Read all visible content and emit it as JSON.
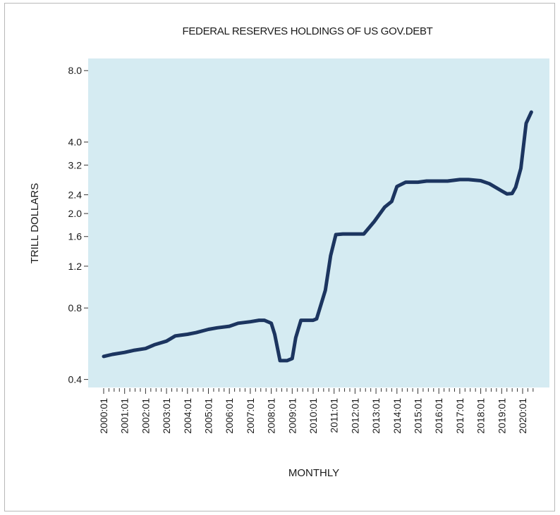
{
  "chart_data": {
    "type": "line",
    "title": "FEDERAL RESERVES HOLDINGS OF US GOV.DEBT",
    "xlabel": "MONTHLY",
    "ylabel": "TRILL DOLLARS",
    "yscale": "log",
    "ylim": [
      0.37,
      9.0
    ],
    "grid": false,
    "legend": "none",
    "plot_bg": "#d5ebf2",
    "line_color": "#1c3560",
    "yticks": [
      {
        "value": 0.4,
        "label": "0.4"
      },
      {
        "value": 0.8,
        "label": "0.8"
      },
      {
        "value": 1.2,
        "label": "1.2"
      },
      {
        "value": 1.6,
        "label": "1.6"
      },
      {
        "value": 2.0,
        "label": "2.0"
      },
      {
        "value": 2.4,
        "label": "2.4"
      },
      {
        "value": 3.2,
        "label": "3.2"
      },
      {
        "value": 4.0,
        "label": "4.0"
      },
      {
        "value": 8.0,
        "label": "8.0"
      }
    ],
    "xticks": [
      "2000:01",
      "2001:01",
      "2002:01",
      "2003:01",
      "2004:01",
      "2005:01",
      "2006:01",
      "2007:01",
      "2008:01",
      "2009:01",
      "2010:01",
      "2011:01",
      "2012:01",
      "2013:01",
      "2014:01",
      "2015:01",
      "2016:01",
      "2017:01",
      "2018:01",
      "2019:01",
      "2020:01"
    ],
    "series": [
      {
        "x": [
          "2000:01",
          "2000:06",
          "2001:01",
          "2001:06",
          "2002:01",
          "2002:06",
          "2003:01",
          "2003:06",
          "2004:01",
          "2004:06",
          "2005:01",
          "2005:06",
          "2006:01",
          "2006:06",
          "2007:01",
          "2007:06",
          "2007:09",
          "2008:01",
          "2008:03",
          "2008:06",
          "2008:10",
          "2009:01",
          "2009:03",
          "2009:06",
          "2010:01",
          "2010:03",
          "2010:08",
          "2010:11",
          "2011:02",
          "2011:06",
          "2012:01",
          "2012:06",
          "2012:12",
          "2013:06",
          "2013:10",
          "2014:01",
          "2014:06",
          "2015:01",
          "2015:06",
          "2016:01",
          "2016:06",
          "2017:01",
          "2017:06",
          "2018:01",
          "2018:06",
          "2019:01",
          "2019:04",
          "2019:07",
          "2019:09",
          "2019:12",
          "2020:03",
          "2020:06"
        ],
        "y": [
          0.5,
          0.51,
          0.52,
          0.53,
          0.54,
          0.56,
          0.58,
          0.61,
          0.62,
          0.63,
          0.65,
          0.66,
          0.67,
          0.69,
          0.7,
          0.71,
          0.71,
          0.69,
          0.62,
          0.48,
          0.48,
          0.49,
          0.6,
          0.71,
          0.71,
          0.72,
          0.95,
          1.33,
          1.63,
          1.64,
          1.64,
          1.64,
          1.85,
          2.13,
          2.25,
          2.6,
          2.71,
          2.71,
          2.74,
          2.74,
          2.74,
          2.78,
          2.78,
          2.75,
          2.67,
          2.49,
          2.42,
          2.43,
          2.58,
          3.1,
          4.8,
          5.35
        ]
      }
    ]
  }
}
